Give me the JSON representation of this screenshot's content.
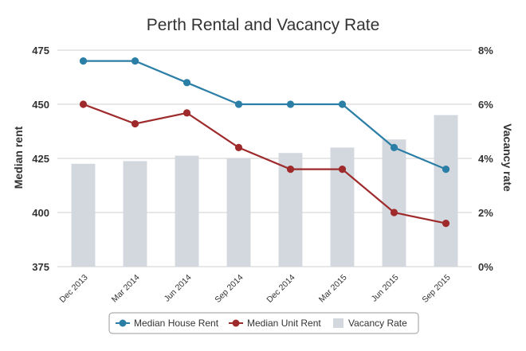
{
  "chart_data": {
    "type": "bar+line",
    "title": "Perth Rental and Vacancy Rate",
    "categories": [
      "Dec 2013",
      "Mar 2014",
      "Jun 2014",
      "Sep 2014",
      "Dec 2014",
      "Mar 2015",
      "Jun 2015",
      "Sep 2015"
    ],
    "y_left": {
      "label": "Median rent",
      "min": 375,
      "max": 475,
      "ticks": [
        "375",
        "400",
        "425",
        "450",
        "475"
      ]
    },
    "y_right": {
      "label": "Vacancy rate",
      "min": 0,
      "max": 8,
      "ticks": [
        "0%",
        "2%",
        "4%",
        "6%",
        "8%"
      ]
    },
    "series": [
      {
        "name": "Median House Rent",
        "type": "line",
        "axis": "left",
        "color": "#2b7ea6",
        "values": [
          470,
          470,
          460,
          450,
          450,
          450,
          430,
          420
        ]
      },
      {
        "name": "Median Unit Rent",
        "type": "line",
        "axis": "left",
        "color": "#9e2a2b",
        "values": [
          450,
          441,
          446,
          430,
          420,
          420,
          400,
          395
        ]
      },
      {
        "name": "Vacancy Rate",
        "type": "bar",
        "axis": "right",
        "color": "#d3d8de",
        "values": [
          3.8,
          3.9,
          4.1,
          4.0,
          4.2,
          4.4,
          4.7,
          5.6
        ]
      }
    ],
    "grid": "horizontal",
    "legend_position": "bottom"
  }
}
